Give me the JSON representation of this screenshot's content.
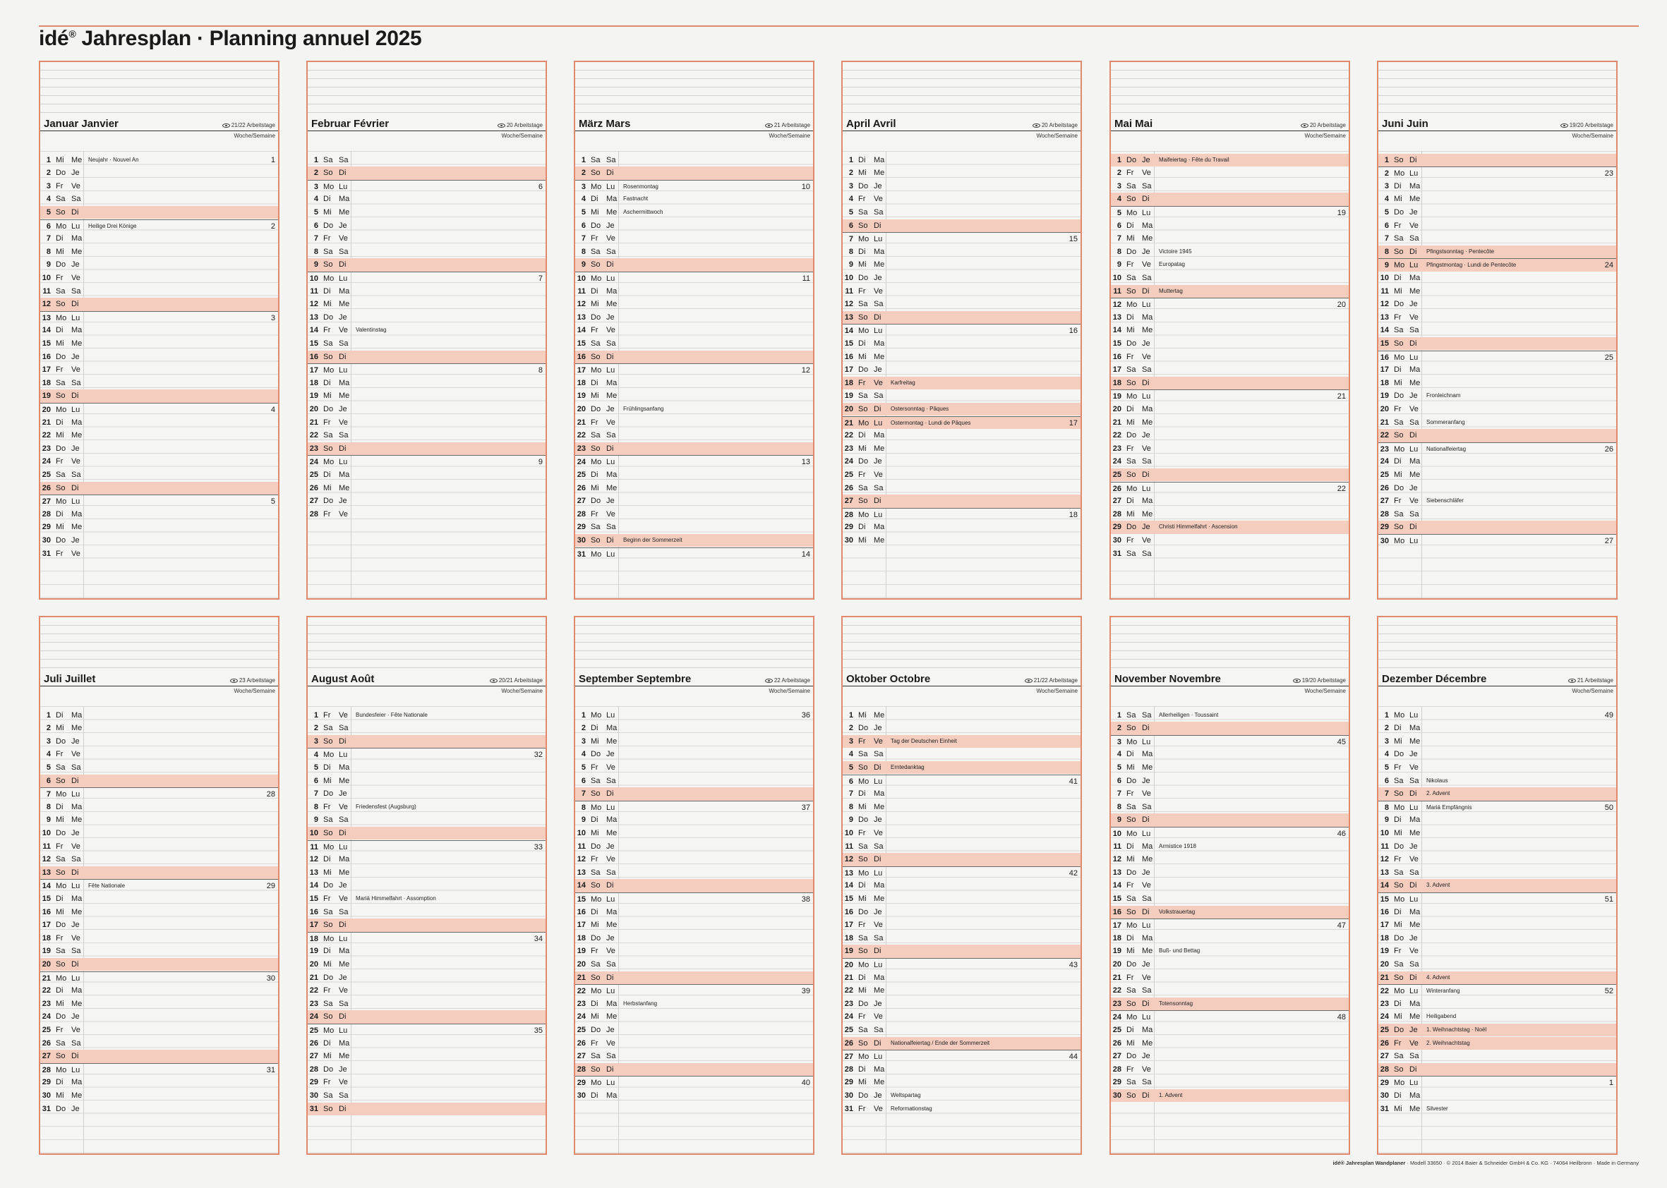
{
  "title": {
    "brand": "idé",
    "reg": "®",
    "text": "Jahresplan · Planning annuel 2025"
  },
  "labels": {
    "woche": "Woche/Semaine"
  },
  "footer": {
    "bold": "idé® Jahresplan Wandplaner",
    "text": " · Modell 33650 · © 2014 Baier & Schneider GmbH & Co. KG · 74064 Heilbronn · Made in Germany"
  },
  "months": [
    {
      "name": "Januar  Janvier",
      "workdays": "21/22 Arbeitstage",
      "days": 31,
      "start": 2,
      "holidays": {
        "1": "Neujahr · Nouvel An",
        "6": "Heilige Drei Könige"
      },
      "weeks": {
        "1": "1",
        "6": "2",
        "13": "3",
        "20": "4",
        "27": "5"
      }
    },
    {
      "name": "Februar  Février",
      "workdays": "20 Arbeitstage",
      "days": 28,
      "start": 5,
      "holidays": {
        "14": "Valentinstag"
      },
      "weeks": {
        "3": "6",
        "10": "7",
        "17": "8",
        "24": "9"
      }
    },
    {
      "name": "März  Mars",
      "workdays": "21 Arbeitstage",
      "days": 31,
      "start": 5,
      "holidays": {
        "3": "Rosenmontag",
        "4": "Fastnacht",
        "5": "Aschermittwoch",
        "20": "Frühlingsanfang",
        "30": "Beginn der Sommerzeit"
      },
      "weeks": {
        "3": "10",
        "10": "11",
        "17": "12",
        "24": "13",
        "31": "14"
      }
    },
    {
      "name": "April  Avril",
      "workdays": "20 Arbeitstage",
      "days": 30,
      "start": 1,
      "holidays": {
        "18": "Karfreitag",
        "20": "Ostersonntag · Pâques",
        "21": "Ostermontag · Lundi de Pâques"
      },
      "redDays": [
        18,
        21
      ],
      "weeks": {
        "7": "15",
        "14": "16",
        "21": "17",
        "28": "18"
      }
    },
    {
      "name": "Mai  Mai",
      "workdays": "20 Arbeitstage",
      "days": 31,
      "start": 3,
      "holidays": {
        "1": "Maifeiertag · Fête du Travail",
        "8": "Victoire 1945",
        "9": "Europatag",
        "11": "Muttertag",
        "29": "Christi Himmelfahrt · Ascension"
      },
      "redDays": [
        1,
        29
      ],
      "weeks": {
        "5": "19",
        "12": "20",
        "19": "21",
        "26": "22"
      }
    },
    {
      "name": "Juni  Juin",
      "workdays": "19/20 Arbeitstage",
      "days": 30,
      "start": 6,
      "holidays": {
        "8": "Pfingstsonntag · Pentecôte",
        "9": "Pfingstmontag · Lundi de Pentecôte",
        "19": "Fronleichnam",
        "21": "Sommeranfang",
        "23": "Nationalfeiertag",
        "27": "Siebenschläfer"
      },
      "redDays": [
        9
      ],
      "weeks": {
        "2": "23",
        "9": "24",
        "16": "25",
        "23": "26",
        "30": "27"
      }
    },
    {
      "name": "Juli  Juillet",
      "workdays": "23 Arbeitstage",
      "days": 31,
      "start": 1,
      "holidays": {
        "14": "Fête Nationale"
      },
      "weeks": {
        "7": "28",
        "14": "29",
        "21": "30",
        "28": "31"
      }
    },
    {
      "name": "August  Août",
      "workdays": "20/21 Arbeitstage",
      "days": 31,
      "start": 4,
      "holidays": {
        "1": "Bundesfeier · Fête Nationale",
        "8": "Friedensfest (Augsburg)",
        "15": "Mariä Himmelfahrt · Assomption"
      },
      "weeks": {
        "4": "32",
        "11": "33",
        "18": "34",
        "25": "35"
      }
    },
    {
      "name": "September  Septembre",
      "workdays": "22 Arbeitstage",
      "days": 30,
      "start": 0,
      "holidays": {
        "23": "Herbstanfang"
      },
      "weeks": {
        "1": "36",
        "8": "37",
        "15": "38",
        "22": "39",
        "29": "40"
      }
    },
    {
      "name": "Oktober  Octobre",
      "workdays": "21/22 Arbeitstage",
      "days": 31,
      "start": 2,
      "holidays": {
        "3": "Tag der Deutschen Einheit",
        "5": "Erntedanktag",
        "26": "Nationalfeiertag / Ende der Sommerzeit",
        "30": "Weltspartag",
        "31": "Reformationstag"
      },
      "redDays": [
        3
      ],
      "weeks": {
        "6": "41",
        "13": "42",
        "20": "43",
        "27": "44"
      }
    },
    {
      "name": "November  Novembre",
      "workdays": "19/20 Arbeitstage",
      "days": 30,
      "start": 5,
      "holidays": {
        "1": "Allerheiligen · Toussaint",
        "11": "Armistice 1918",
        "16": "Volkstrauertag",
        "19": "Buß- und Bettag",
        "23": "Totensonntag",
        "30": "1. Advent"
      },
      "weeks": {
        "3": "45",
        "10": "46",
        "17": "47",
        "24": "48"
      }
    },
    {
      "name": "Dezember  Décembre",
      "workdays": "21 Arbeitstage",
      "days": 31,
      "start": 0,
      "holidays": {
        "6": "Nikolaus",
        "7": "2. Advent",
        "8": "Mariä Empfängnis",
        "14": "3. Advent",
        "21": "4. Advent",
        "22": "Winteranfang",
        "24": "Heiligabend",
        "25": "1. Weihnachtstag · Noël",
        "26": "2. Weihnachtstag",
        "31": "Silvester"
      },
      "redDays": [
        25,
        26
      ],
      "weeks": {
        "1": "49",
        "8": "50",
        "15": "51",
        "22": "52",
        "29": "1"
      }
    }
  ],
  "weekdays_de": [
    "Mo",
    "Di",
    "Mi",
    "Do",
    "Fr",
    "Sa",
    "So"
  ],
  "weekdays_fr": [
    "Lu",
    "Ma",
    "Me",
    "Je",
    "Ve",
    "Sa",
    "Di"
  ],
  "colors": {
    "accent": "#e2896d",
    "sunday": "#f4cdbf"
  }
}
